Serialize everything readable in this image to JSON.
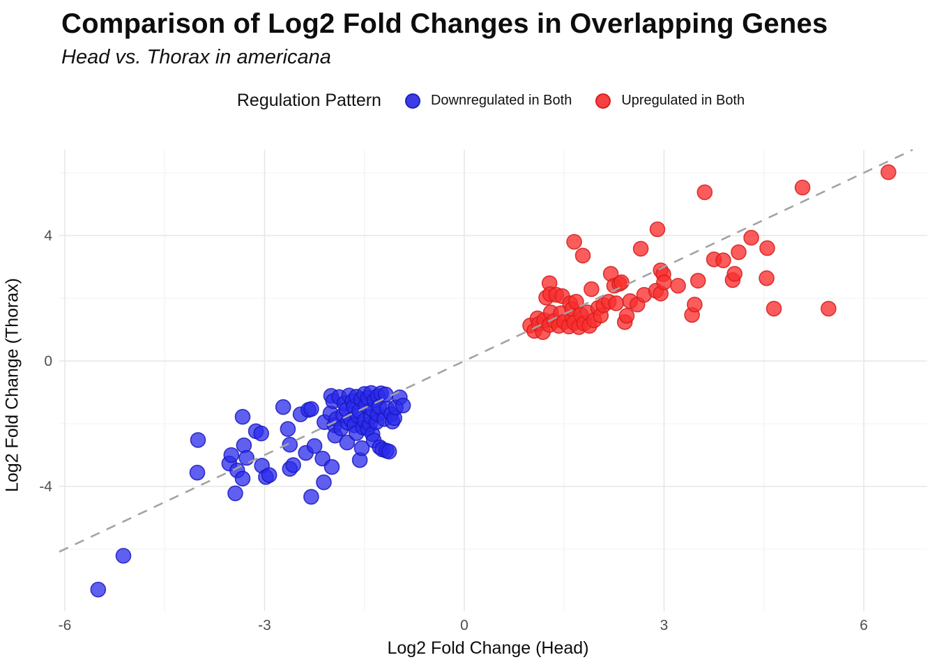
{
  "header": {
    "title": "Comparison of Log2 Fold Changes in Overlapping Genes",
    "subtitle": "Head vs. Thorax in americana"
  },
  "legend": {
    "title": "Regulation Pattern",
    "position": "top",
    "items": [
      {
        "label": "Downregulated in Both",
        "color": "#3B3BE8",
        "border": "#2020BB"
      },
      {
        "label": "Upregulated in Both",
        "color": "#F94040",
        "border": "#D42020"
      }
    ]
  },
  "chart_data": {
    "type": "scatter",
    "title": "Comparison of Log2 Fold Changes in Overlapping Genes",
    "subtitle": "Head vs. Thorax in americana",
    "xlabel": "Log2 Fold Change (Head)",
    "ylabel": "Log2 Fold Change (Thorax)",
    "xlim": [
      -6.08,
      6.85
    ],
    "ylim": [
      -7.97,
      6.73
    ],
    "x_ticks": [
      -6,
      -3,
      0,
      3,
      6
    ],
    "y_ticks": [
      -4,
      0,
      4
    ],
    "x_minor": [
      -4.5,
      -1.5,
      1.5,
      4.5
    ],
    "y_minor": [
      -6,
      -2,
      2,
      6
    ],
    "grid": "major+minor",
    "reference_line": {
      "type": "identity y=x",
      "style": "dashed",
      "color": "#A3A3A3"
    },
    "series": [
      {
        "name": "Downregulated in Both",
        "fill": "#2B2BEB",
        "stroke": "#1818C0",
        "opacity": 0.75,
        "points": [
          [
            -5.5,
            -7.29
          ],
          [
            -5.12,
            -6.21
          ],
          [
            -4.0,
            -2.52
          ],
          [
            -4.01,
            -3.56
          ],
          [
            -3.53,
            -3.27
          ],
          [
            -3.5,
            -3.0
          ],
          [
            -3.44,
            -4.22
          ],
          [
            -3.41,
            -3.49
          ],
          [
            -3.33,
            -1.78
          ],
          [
            -3.33,
            -3.75
          ],
          [
            -3.31,
            -2.69
          ],
          [
            -3.27,
            -3.09
          ],
          [
            -3.13,
            -2.24
          ],
          [
            -3.05,
            -2.31
          ],
          [
            -3.04,
            -3.34
          ],
          [
            -2.98,
            -3.7
          ],
          [
            -2.93,
            -3.64
          ],
          [
            -2.72,
            -1.47
          ],
          [
            -2.65,
            -2.17
          ],
          [
            -2.62,
            -2.67
          ],
          [
            -2.62,
            -3.44
          ],
          [
            -2.57,
            -3.32
          ],
          [
            -2.46,
            -1.7
          ],
          [
            -2.38,
            -2.93
          ],
          [
            -2.34,
            -1.56
          ],
          [
            -2.3,
            -1.53
          ],
          [
            -2.3,
            -4.33
          ],
          [
            -2.25,
            -2.71
          ],
          [
            -2.13,
            -3.11
          ],
          [
            -2.11,
            -3.87
          ],
          [
            -2.1,
            -1.95
          ],
          [
            -2.01,
            -1.67
          ],
          [
            -2.0,
            -1.11
          ],
          [
            -1.99,
            -3.38
          ],
          [
            -1.97,
            -1.28
          ],
          [
            -1.95,
            -2.05
          ],
          [
            -1.94,
            -2.38
          ],
          [
            -1.92,
            -1.85
          ],
          [
            -1.88,
            -1.15
          ],
          [
            -1.85,
            -2.15
          ],
          [
            -1.82,
            -1.72
          ],
          [
            -1.8,
            -1.35
          ],
          [
            -1.77,
            -1.56
          ],
          [
            -1.76,
            -2.6
          ],
          [
            -1.75,
            -1.97
          ],
          [
            -1.73,
            -1.1
          ],
          [
            -1.7,
            -1.88
          ],
          [
            -1.68,
            -1.28
          ],
          [
            -1.66,
            -1.45
          ],
          [
            -1.65,
            -2.05
          ],
          [
            -1.62,
            -1.14
          ],
          [
            -1.62,
            -2.3
          ],
          [
            -1.6,
            -1.75
          ],
          [
            -1.58,
            -1.6
          ],
          [
            -1.57,
            -3.16
          ],
          [
            -1.55,
            -1.22
          ],
          [
            -1.54,
            -2.78
          ],
          [
            -1.52,
            -2.12
          ],
          [
            -1.5,
            -1.05
          ],
          [
            -1.5,
            -1.9
          ],
          [
            -1.48,
            -1.42
          ],
          [
            -1.45,
            -1.18
          ],
          [
            -1.45,
            -2.16
          ],
          [
            -1.42,
            -2.02
          ],
          [
            -1.4,
            -1.02
          ],
          [
            -1.4,
            -1.78
          ],
          [
            -1.38,
            -1.55
          ],
          [
            -1.38,
            -2.33
          ],
          [
            -1.36,
            -2.53
          ],
          [
            -1.35,
            -1.25
          ],
          [
            -1.32,
            -1.95
          ],
          [
            -1.3,
            -1.12
          ],
          [
            -1.3,
            -1.7
          ],
          [
            -1.28,
            -1.46
          ],
          [
            -1.27,
            -2.75
          ],
          [
            -1.25,
            -1.03
          ],
          [
            -1.23,
            -2.82
          ],
          [
            -1.2,
            -1.85
          ],
          [
            -1.18,
            -1.07
          ],
          [
            -1.17,
            -2.86
          ],
          [
            -1.16,
            -1.52
          ],
          [
            -1.13,
            -2.89
          ],
          [
            -1.1,
            -1.7
          ],
          [
            -1.08,
            -1.93
          ],
          [
            -1.05,
            -1.82
          ],
          [
            -1.03,
            -1.48
          ],
          [
            -0.97,
            -1.16
          ],
          [
            -0.92,
            -1.42
          ]
        ]
      },
      {
        "name": "Upregulated in Both",
        "fill": "#FA2E2E",
        "stroke": "#D51C1C",
        "opacity": 0.78,
        "points": [
          [
            0.99,
            1.13
          ],
          [
            1.05,
            0.96
          ],
          [
            1.1,
            1.36
          ],
          [
            1.12,
            1.18
          ],
          [
            1.18,
            0.92
          ],
          [
            1.2,
            1.3
          ],
          [
            1.23,
            2.02
          ],
          [
            1.28,
            1.15
          ],
          [
            1.28,
            2.48
          ],
          [
            1.29,
            2.13
          ],
          [
            1.3,
            1.55
          ],
          [
            1.35,
            1.28
          ],
          [
            1.38,
            2.11
          ],
          [
            1.42,
            1.12
          ],
          [
            1.45,
            1.52
          ],
          [
            1.47,
            2.07
          ],
          [
            1.5,
            1.25
          ],
          [
            1.57,
            1.1
          ],
          [
            1.59,
            1.84
          ],
          [
            1.62,
            1.4
          ],
          [
            1.62,
            1.66
          ],
          [
            1.65,
            1.22
          ],
          [
            1.65,
            3.8
          ],
          [
            1.68,
            1.89
          ],
          [
            1.72,
            1.08
          ],
          [
            1.75,
            1.48
          ],
          [
            1.78,
            3.36
          ],
          [
            1.8,
            1.2
          ],
          [
            1.85,
            1.55
          ],
          [
            1.88,
            1.12
          ],
          [
            1.91,
            2.29
          ],
          [
            1.95,
            1.3
          ],
          [
            2.01,
            1.69
          ],
          [
            2.05,
            1.45
          ],
          [
            2.09,
            1.78
          ],
          [
            2.17,
            1.89
          ],
          [
            2.2,
            2.78
          ],
          [
            2.25,
            2.4
          ],
          [
            2.28,
            1.84
          ],
          [
            2.33,
            2.46
          ],
          [
            2.36,
            2.51
          ],
          [
            2.41,
            1.24
          ],
          [
            2.44,
            1.44
          ],
          [
            2.49,
            1.91
          ],
          [
            2.6,
            1.8
          ],
          [
            2.65,
            3.58
          ],
          [
            2.7,
            2.11
          ],
          [
            2.88,
            2.24
          ],
          [
            2.95,
            2.15
          ],
          [
            2.9,
            4.2
          ],
          [
            2.95,
            2.89
          ],
          [
            2.99,
            2.77
          ],
          [
            3.0,
            2.51
          ],
          [
            3.21,
            2.4
          ],
          [
            3.42,
            1.47
          ],
          [
            3.46,
            1.8
          ],
          [
            3.51,
            2.56
          ],
          [
            3.61,
            5.38
          ],
          [
            3.75,
            3.24
          ],
          [
            3.89,
            3.21
          ],
          [
            4.03,
            2.58
          ],
          [
            4.06,
            2.78
          ],
          [
            4.12,
            3.47
          ],
          [
            4.31,
            3.93
          ],
          [
            4.54,
            2.64
          ],
          [
            4.55,
            3.6
          ],
          [
            4.65,
            1.67
          ],
          [
            5.08,
            5.53
          ],
          [
            5.47,
            1.67
          ],
          [
            6.37,
            6.02
          ]
        ]
      }
    ]
  },
  "colors": {
    "grid_major": "#E5E5E5",
    "grid_minor": "#F1F1F1",
    "tick_label": "#4D4D4D",
    "text": "#0D0D0D",
    "background": "#FFFFFF"
  }
}
